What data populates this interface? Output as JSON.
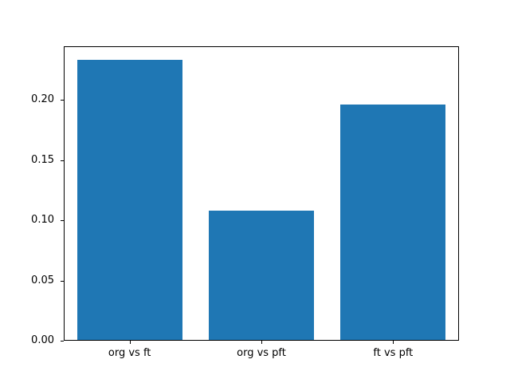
{
  "figure": {
    "background_color": "#ffffff",
    "frame_color": "#000000",
    "tick_color": "#000000",
    "text_color": "#000000"
  },
  "chart_data": {
    "type": "bar",
    "title": "",
    "xlabel": "",
    "ylabel": "",
    "categories": [
      "org vs ft",
      "org vs pft",
      "ft vs pft"
    ],
    "values": [
      0.233,
      0.108,
      0.196
    ],
    "bar_color": "#1f77b4",
    "bar_width_fraction": 0.8,
    "ylim": [
      0,
      0.2447
    ],
    "yticks": [
      {
        "value": 0.0,
        "label": "0.00"
      },
      {
        "value": 0.05,
        "label": "0.05"
      },
      {
        "value": 0.1,
        "label": "0.10"
      },
      {
        "value": 0.15,
        "label": "0.15"
      },
      {
        "value": 0.2,
        "label": "0.20"
      }
    ],
    "grid": false,
    "legend": null
  }
}
